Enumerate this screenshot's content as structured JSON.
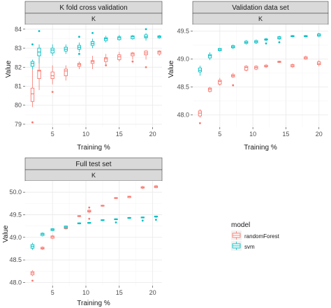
{
  "colors": {
    "randomForest": "#F8766D",
    "svm": "#00BFC4",
    "panel_bg": "#FFFFFF",
    "grid_major": "#EBEBEB",
    "grid_minor": "#F5F5F5",
    "strip_bg": "#D9D9D9",
    "strip_border": "#444444",
    "axis_text": "#4D4D4D",
    "title_text": "#1A1A1A"
  },
  "legend": {
    "title": "model",
    "items": [
      {
        "key": "randomForest",
        "label": "randomForest"
      },
      {
        "key": "svm",
        "label": "svm"
      }
    ]
  },
  "chart_data": [
    {
      "type": "boxplot",
      "title": "K fold cross validation",
      "strip": "K",
      "xlabel": "Training %",
      "ylabel": "Value",
      "x_ticks": [
        5,
        10,
        15,
        20
      ],
      "y_ticks": [
        79,
        80,
        81,
        82,
        83,
        84
      ],
      "xlim": [
        0.9,
        21.4
      ],
      "ylim": [
        78.85,
        84.25
      ],
      "grid": true,
      "series": [
        {
          "key": "randomForest",
          "boxes": [
            {
              "x": 2,
              "min": 79.9,
              "q1": 80.2,
              "median": 80.6,
              "q3": 80.9,
              "max": 81.9,
              "outliers": [
                79.1
              ]
            },
            {
              "x": 3,
              "min": 80.8,
              "q1": 81.4,
              "median": 81.8,
              "q3": 81.85,
              "max": 82.5,
              "outliers": []
            },
            {
              "x": 5,
              "min": 81.1,
              "q1": 81.4,
              "median": 81.55,
              "q3": 81.75,
              "max": 82.1,
              "outliers": [
                80.7
              ]
            },
            {
              "x": 7,
              "min": 81.3,
              "q1": 81.55,
              "median": 81.8,
              "q3": 81.9,
              "max": 82.1,
              "outliers": []
            },
            {
              "x": 9,
              "min": 81.9,
              "q1": 82.05,
              "median": 82.15,
              "q3": 82.2,
              "max": 82.3,
              "outliers": []
            },
            {
              "x": 11,
              "min": 81.9,
              "q1": 82.2,
              "median": 82.3,
              "q3": 82.35,
              "max": 82.6,
              "outliers": []
            },
            {
              "x": 13,
              "min": 82.1,
              "q1": 82.3,
              "median": 82.45,
              "q3": 82.5,
              "max": 82.7,
              "outliers": [
                82.1
              ]
            },
            {
              "x": 15,
              "min": 82.3,
              "q1": 82.4,
              "median": 82.55,
              "q3": 82.65,
              "max": 82.8,
              "outliers": []
            },
            {
              "x": 17,
              "min": 82.4,
              "q1": 82.6,
              "median": 82.7,
              "q3": 82.75,
              "max": 82.8,
              "outliers": [
                82.3
              ]
            },
            {
              "x": 19,
              "min": 82.4,
              "q1": 82.65,
              "median": 82.75,
              "q3": 82.85,
              "max": 82.9,
              "outliers": [
                82.0
              ]
            },
            {
              "x": 21,
              "min": 82.6,
              "q1": 82.7,
              "median": 82.8,
              "q3": 82.85,
              "max": 82.9,
              "outliers": []
            }
          ]
        },
        {
          "key": "svm",
          "boxes": [
            {
              "x": 2,
              "min": 81.9,
              "q1": 82.05,
              "median": 82.2,
              "q3": 82.3,
              "max": 82.4,
              "outliers": [
                83.2
              ]
            },
            {
              "x": 3,
              "min": 82.2,
              "q1": 82.6,
              "median": 82.8,
              "q3": 83.0,
              "max": 83.2,
              "outliers": [
                83.9
              ]
            },
            {
              "x": 5,
              "min": 82.6,
              "q1": 82.75,
              "median": 82.9,
              "q3": 83.0,
              "max": 83.2,
              "outliers": []
            },
            {
              "x": 7,
              "min": 82.7,
              "q1": 82.85,
              "median": 82.95,
              "q3": 83.05,
              "max": 83.2,
              "outliers": []
            },
            {
              "x": 9,
              "min": 82.8,
              "q1": 82.95,
              "median": 83.05,
              "q3": 83.15,
              "max": 83.3,
              "outliers": [
                83.6,
                82.7
              ]
            },
            {
              "x": 11,
              "min": 83.0,
              "q1": 83.15,
              "median": 83.25,
              "q3": 83.35,
              "max": 83.5,
              "outliers": [
                83.8
              ]
            },
            {
              "x": 13,
              "min": 83.3,
              "q1": 83.4,
              "median": 83.5,
              "q3": 83.55,
              "max": 83.65,
              "outliers": []
            },
            {
              "x": 15,
              "min": 83.4,
              "q1": 83.45,
              "median": 83.55,
              "q3": 83.6,
              "max": 83.7,
              "outliers": []
            },
            {
              "x": 17,
              "min": 83.45,
              "q1": 83.5,
              "median": 83.6,
              "q3": 83.65,
              "max": 83.7,
              "outliers": []
            },
            {
              "x": 19,
              "min": 83.4,
              "q1": 83.55,
              "median": 83.6,
              "q3": 83.7,
              "max": 83.8,
              "outliers": [
                84.0
              ]
            },
            {
              "x": 21,
              "min": 83.5,
              "q1": 83.55,
              "median": 83.6,
              "q3": 83.65,
              "max": 83.7,
              "outliers": []
            }
          ]
        }
      ]
    },
    {
      "type": "boxplot",
      "title": "Validation data set",
      "strip": "K",
      "xlabel": "Training %",
      "ylabel": "Value",
      "x_ticks": [
        5,
        10,
        15,
        20
      ],
      "y_ticks": [
        48.0,
        48.5,
        49.0,
        49.5
      ],
      "xlim": [
        0.9,
        21.4
      ],
      "ylim": [
        47.78,
        49.62
      ],
      "grid": true,
      "series": [
        {
          "key": "randomForest",
          "boxes": [
            {
              "x": 2,
              "min": 47.95,
              "q1": 47.98,
              "median": 48.03,
              "q3": 48.07,
              "max": 48.1,
              "outliers": [
                47.85
              ]
            },
            {
              "x": 3.5,
              "min": 48.4,
              "q1": 48.42,
              "median": 48.46,
              "q3": 48.48,
              "max": 48.5,
              "outliers": []
            },
            {
              "x": 5,
              "min": 48.52,
              "q1": 48.55,
              "median": 48.6,
              "q3": 48.62,
              "max": 48.66,
              "outliers": []
            },
            {
              "x": 7,
              "min": 48.66,
              "q1": 48.68,
              "median": 48.7,
              "q3": 48.72,
              "max": 48.75,
              "outliers": [
                48.53
              ]
            },
            {
              "x": 9,
              "min": 48.78,
              "q1": 48.8,
              "median": 48.85,
              "q3": 48.87,
              "max": 48.89,
              "outliers": []
            },
            {
              "x": 10.5,
              "min": 48.8,
              "q1": 48.82,
              "median": 48.85,
              "q3": 48.87,
              "max": 48.89,
              "outliers": []
            },
            {
              "x": 12,
              "min": 48.84,
              "q1": 48.86,
              "median": 48.87,
              "q3": 48.89,
              "max": 48.91,
              "outliers": []
            },
            {
              "x": 14,
              "min": 48.93,
              "q1": 48.94,
              "median": 48.95,
              "q3": 48.96,
              "max": 48.97,
              "outliers": []
            },
            {
              "x": 16,
              "min": 48.84,
              "q1": 48.86,
              "median": 48.88,
              "q3": 48.9,
              "max": 48.92,
              "outliers": []
            },
            {
              "x": 18,
              "min": 48.99,
              "q1": 49.0,
              "median": 49.02,
              "q3": 49.04,
              "max": 49.06,
              "outliers": []
            },
            {
              "x": 20,
              "min": 48.87,
              "q1": 48.9,
              "median": 48.92,
              "q3": 48.95,
              "max": 48.98,
              "outliers": []
            }
          ]
        },
        {
          "key": "svm",
          "boxes": [
            {
              "x": 2,
              "min": 48.7,
              "q1": 48.77,
              "median": 48.8,
              "q3": 48.84,
              "max": 48.88,
              "outliers": []
            },
            {
              "x": 3.5,
              "min": 48.98,
              "q1": 49.02,
              "median": 49.06,
              "q3": 49.08,
              "max": 49.12,
              "outliers": []
            },
            {
              "x": 5,
              "min": 49.13,
              "q1": 49.15,
              "median": 49.17,
              "q3": 49.19,
              "max": 49.2,
              "outliers": []
            },
            {
              "x": 7,
              "min": 49.18,
              "q1": 49.2,
              "median": 49.22,
              "q3": 49.24,
              "max": 49.26,
              "outliers": []
            },
            {
              "x": 9,
              "min": 49.26,
              "q1": 49.28,
              "median": 49.3,
              "q3": 49.32,
              "max": 49.34,
              "outliers": []
            },
            {
              "x": 10.5,
              "min": 49.27,
              "q1": 49.29,
              "median": 49.31,
              "q3": 49.33,
              "max": 49.35,
              "outliers": []
            },
            {
              "x": 12,
              "min": 49.32,
              "q1": 49.34,
              "median": 49.35,
              "q3": 49.36,
              "max": 49.38,
              "outliers": [
                49.28
              ]
            },
            {
              "x": 14,
              "min": 49.34,
              "q1": 49.36,
              "median": 49.38,
              "q3": 49.4,
              "max": 49.42,
              "outliers": [
                49.3
              ]
            },
            {
              "x": 16,
              "min": 49.39,
              "q1": 49.4,
              "median": 49.41,
              "q3": 49.42,
              "max": 49.43,
              "outliers": []
            },
            {
              "x": 18,
              "min": 49.39,
              "q1": 49.4,
              "median": 49.41,
              "q3": 49.42,
              "max": 49.43,
              "outliers": []
            },
            {
              "x": 20,
              "min": 49.39,
              "q1": 49.41,
              "median": 49.43,
              "q3": 49.45,
              "max": 49.47,
              "outliers": []
            }
          ]
        }
      ]
    },
    {
      "type": "boxplot",
      "title": "Full test set",
      "strip": "K",
      "xlabel": "Training %",
      "ylabel": "Value",
      "x_ticks": [
        5,
        10,
        15,
        20
      ],
      "y_ticks": [
        48.0,
        48.5,
        49.0,
        49.5,
        50.0
      ],
      "xlim": [
        0.9,
        21.4
      ],
      "ylim": [
        47.93,
        50.25
      ],
      "grid": true,
      "series": [
        {
          "key": "randomForest",
          "boxes": [
            {
              "x": 2,
              "min": 48.14,
              "q1": 48.17,
              "median": 48.21,
              "q3": 48.24,
              "max": 48.27,
              "outliers": [
                48.04
              ]
            },
            {
              "x": 3.5,
              "min": 48.72,
              "q1": 48.74,
              "median": 48.76,
              "q3": 48.78,
              "max": 48.8,
              "outliers": []
            },
            {
              "x": 5,
              "min": 48.96,
              "q1": 48.98,
              "median": 49.01,
              "q3": 49.03,
              "max": 49.05,
              "outliers": []
            },
            {
              "x": 7,
              "min": 49.17,
              "q1": 49.19,
              "median": 49.21,
              "q3": 49.23,
              "max": 49.25,
              "outliers": []
            },
            {
              "x": 9,
              "min": 49.45,
              "q1": 49.46,
              "median": 49.47,
              "q3": 49.48,
              "max": 49.49,
              "outliers": []
            },
            {
              "x": 10.5,
              "min": 49.53,
              "q1": 49.56,
              "median": 49.58,
              "q3": 49.6,
              "max": 49.62,
              "outliers": [
                49.66,
                49.41
              ]
            },
            {
              "x": 12.5,
              "min": 49.68,
              "q1": 49.69,
              "median": 49.7,
              "q3": 49.71,
              "max": 49.72,
              "outliers": []
            },
            {
              "x": 14.5,
              "min": 49.85,
              "q1": 49.86,
              "median": 49.87,
              "q3": 49.88,
              "max": 49.89,
              "outliers": []
            },
            {
              "x": 16.5,
              "min": 49.87,
              "q1": 49.88,
              "median": 49.9,
              "q3": 49.91,
              "max": 49.92,
              "outliers": []
            },
            {
              "x": 18.5,
              "min": 50.07,
              "q1": 50.09,
              "median": 50.1,
              "q3": 50.12,
              "max": 50.14,
              "outliers": []
            },
            {
              "x": 20.5,
              "min": 50.09,
              "q1": 50.1,
              "median": 50.12,
              "q3": 50.14,
              "max": 50.16,
              "outliers": []
            }
          ]
        },
        {
          "key": "svm",
          "boxes": [
            {
              "x": 2,
              "min": 48.72,
              "q1": 48.76,
              "median": 48.8,
              "q3": 48.84,
              "max": 48.88,
              "outliers": []
            },
            {
              "x": 3.5,
              "min": 49.02,
              "q1": 49.04,
              "median": 49.07,
              "q3": 49.09,
              "max": 49.11,
              "outliers": []
            },
            {
              "x": 5,
              "min": 49.14,
              "q1": 49.15,
              "median": 49.17,
              "q3": 49.19,
              "max": 49.2,
              "outliers": []
            },
            {
              "x": 7,
              "min": 49.2,
              "q1": 49.21,
              "median": 49.23,
              "q3": 49.25,
              "max": 49.26,
              "outliers": []
            },
            {
              "x": 9,
              "min": 49.29,
              "q1": 49.3,
              "median": 49.31,
              "q3": 49.32,
              "max": 49.33,
              "outliers": []
            },
            {
              "x": 10.5,
              "min": 49.3,
              "q1": 49.31,
              "median": 49.32,
              "q3": 49.33,
              "max": 49.34,
              "outliers": []
            },
            {
              "x": 12.5,
              "min": 49.36,
              "q1": 49.37,
              "median": 49.38,
              "q3": 49.39,
              "max": 49.4,
              "outliers": []
            },
            {
              "x": 14.5,
              "min": 49.38,
              "q1": 49.39,
              "median": 49.4,
              "q3": 49.41,
              "max": 49.42,
              "outliers": [
                49.33
              ]
            },
            {
              "x": 16.5,
              "min": 49.41,
              "q1": 49.42,
              "median": 49.43,
              "q3": 49.44,
              "max": 49.45,
              "outliers": []
            },
            {
              "x": 18.5,
              "min": 49.42,
              "q1": 49.43,
              "median": 49.44,
              "q3": 49.45,
              "max": 49.46,
              "outliers": [
                49.37
              ]
            },
            {
              "x": 20.5,
              "min": 49.43,
              "q1": 49.45,
              "median": 49.46,
              "q3": 49.47,
              "max": 49.48,
              "outliers": [
                49.39
              ]
            }
          ]
        }
      ]
    }
  ]
}
